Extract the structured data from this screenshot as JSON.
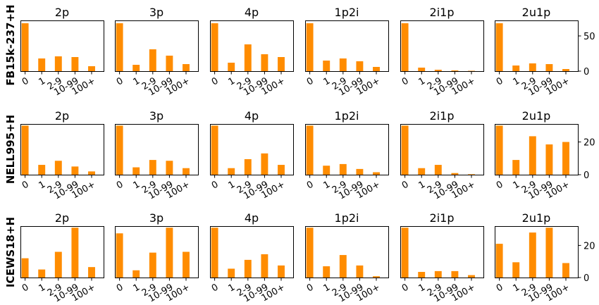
{
  "figure": {
    "bar_color": "#ff8c00",
    "categories": [
      "0",
      "1",
      "2-9",
      "10-99",
      "100+"
    ]
  },
  "chart_data": [
    {
      "type": "bar",
      "row_label": "FB15k-237+H",
      "yticks": [
        0,
        50
      ],
      "ylim": [
        0,
        72
      ],
      "panels": [
        {
          "title": "2p",
          "values": [
            68,
            18,
            21,
            20,
            7
          ]
        },
        {
          "title": "3p",
          "values": [
            68,
            9,
            31,
            22,
            10
          ]
        },
        {
          "title": "4p",
          "values": [
            68,
            12,
            38,
            24,
            20
          ]
        },
        {
          "title": "1p2i",
          "values": [
            68,
            15,
            18,
            14,
            6
          ]
        },
        {
          "title": "2i1p",
          "values": [
            68,
            5,
            2,
            1,
            0.5
          ]
        },
        {
          "title": "2u1p",
          "values": [
            68,
            8,
            11,
            10,
            3
          ]
        }
      ]
    },
    {
      "type": "bar",
      "row_label": "NELL995+H",
      "yticks": [
        0,
        20
      ],
      "ylim": [
        0,
        31
      ],
      "panels": [
        {
          "title": "2p",
          "values": [
            30,
            6,
            8.5,
            5,
            2
          ]
        },
        {
          "title": "3p",
          "values": [
            30,
            4.5,
            9,
            8.5,
            4
          ]
        },
        {
          "title": "4p",
          "values": [
            30,
            4,
            9.5,
            13,
            6
          ]
        },
        {
          "title": "1p2i",
          "values": [
            30,
            5.5,
            6.5,
            3.5,
            1.5
          ]
        },
        {
          "title": "2i1p",
          "values": [
            30,
            4,
            6,
            1,
            0.3
          ]
        },
        {
          "title": "2u1p",
          "values": [
            30,
            9,
            23.5,
            18.5,
            20
          ]
        }
      ]
    },
    {
      "type": "bar",
      "row_label": "ICEWS18+H",
      "yticks": [
        0,
        20
      ],
      "ylim": [
        0,
        32
      ],
      "panels": [
        {
          "title": "2p",
          "values": [
            12,
            5,
            16,
            31,
            6.5
          ]
        },
        {
          "title": "3p",
          "values": [
            27.5,
            4.5,
            15.5,
            31,
            16
          ]
        },
        {
          "title": "4p",
          "values": [
            31,
            5.5,
            11,
            14.5,
            7.5
          ]
        },
        {
          "title": "1p2i",
          "values": [
            31,
            7,
            14,
            7.5,
            0.8
          ]
        },
        {
          "title": "2i1p",
          "values": [
            31,
            3.5,
            4,
            4,
            1.5
          ]
        },
        {
          "title": "2u1p",
          "values": [
            21,
            9.5,
            28,
            31,
            9
          ]
        }
      ]
    }
  ]
}
